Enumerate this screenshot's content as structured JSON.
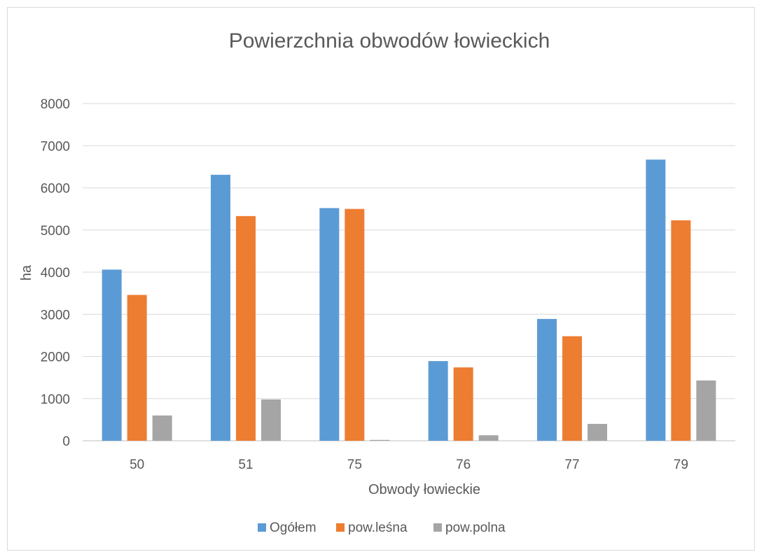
{
  "chart_data": {
    "type": "bar",
    "title": "Powierzchnia obwodów łowieckich",
    "xlabel": "Obwody łowieckie",
    "ylabel": "ha",
    "categories": [
      "50",
      "51",
      "75",
      "76",
      "77",
      "79"
    ],
    "series": [
      {
        "name": "Ogółem",
        "color": "#5b9bd5",
        "values": [
          4060,
          6310,
          5520,
          1890,
          2890,
          6670
        ]
      },
      {
        "name": "pow.leśna",
        "color": "#ed7d31",
        "values": [
          3460,
          5330,
          5500,
          1740,
          2480,
          5230
        ]
      },
      {
        "name": "pow.polna",
        "color": "#a5a5a5",
        "values": [
          600,
          980,
          20,
          130,
          400,
          1430
        ]
      }
    ],
    "ylim": [
      0,
      8000
    ],
    "yticks": [
      "0",
      "1000",
      "2000",
      "3000",
      "4000",
      "5000",
      "6000",
      "7000",
      "8000"
    ],
    "grid": true,
    "legend": "bottom"
  }
}
